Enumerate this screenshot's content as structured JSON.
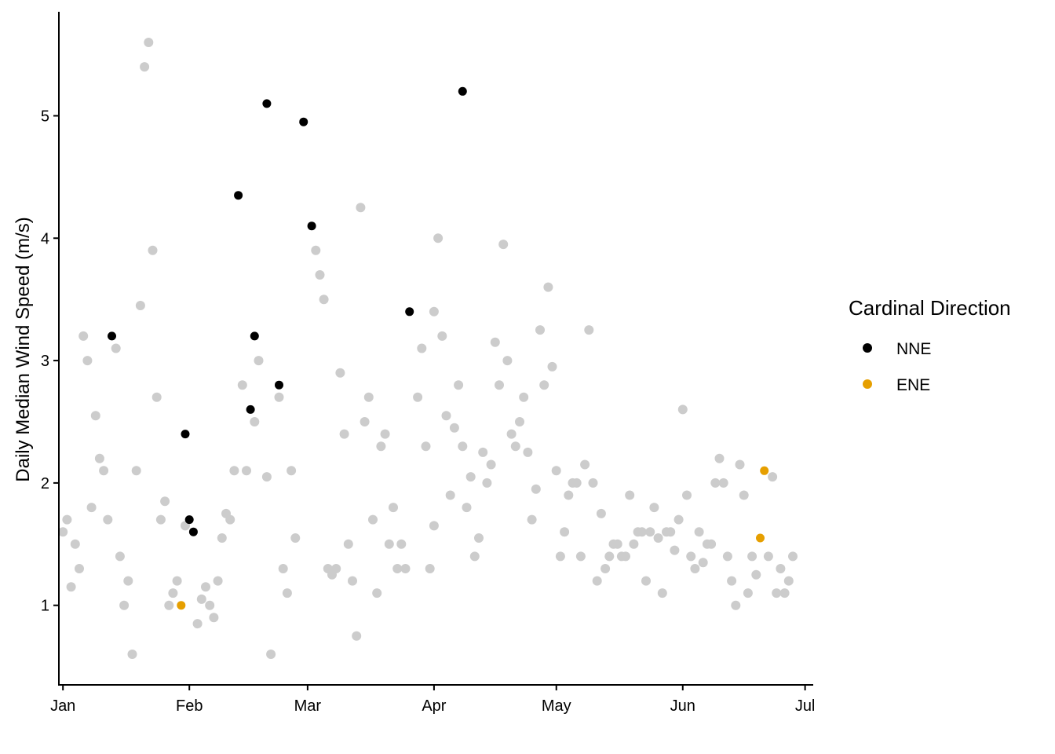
{
  "chart_data": {
    "type": "scatter",
    "title": "",
    "xlabel": "",
    "ylabel": "Daily Median Wind Speed (m/s)",
    "x_ticks": [
      "Jan",
      "Feb",
      "Mar",
      "Apr",
      "May",
      "Jun",
      "Jul"
    ],
    "x_tick_dates": [
      "2020-01-01",
      "2020-02-01",
      "2020-03-01",
      "2020-04-01",
      "2020-05-01",
      "2020-06-01",
      "2020-07-01"
    ],
    "xlim": [
      "2019-12-31",
      "2020-07-03"
    ],
    "y_ticks": [
      "1",
      "2",
      "3",
      "4",
      "5"
    ],
    "ylim": [
      0.35,
      5.85
    ],
    "grid": false,
    "legend": {
      "title": "Cardinal Direction",
      "placement": "right",
      "entries": [
        {
          "label": "NNE",
          "color": "#000000"
        },
        {
          "label": "ENE",
          "color": "#E69F00"
        }
      ]
    },
    "colors": {
      "other": "#CCCCCC",
      "NNE": "#000000",
      "ENE": "#E69F00"
    },
    "series": [
      {
        "group": "other",
        "points": [
          [
            "2020-01-01",
            1.6
          ],
          [
            "2020-01-02",
            1.7
          ],
          [
            "2020-01-03",
            1.15
          ],
          [
            "2020-01-04",
            1.5
          ],
          [
            "2020-01-05",
            1.3
          ],
          [
            "2020-01-06",
            3.2
          ],
          [
            "2020-01-07",
            3.0
          ],
          [
            "2020-01-08",
            1.8
          ],
          [
            "2020-01-09",
            2.55
          ],
          [
            "2020-01-10",
            2.2
          ],
          [
            "2020-01-11",
            2.1
          ],
          [
            "2020-01-12",
            1.7
          ],
          [
            "2020-01-14",
            3.1
          ],
          [
            "2020-01-15",
            1.4
          ],
          [
            "2020-01-16",
            1.0
          ],
          [
            "2020-01-17",
            1.2
          ],
          [
            "2020-01-18",
            0.6
          ],
          [
            "2020-01-19",
            2.1
          ],
          [
            "2020-01-20",
            3.45
          ],
          [
            "2020-01-21",
            5.4
          ],
          [
            "2020-01-22",
            5.6
          ],
          [
            "2020-01-23",
            3.9
          ],
          [
            "2020-01-24",
            2.7
          ],
          [
            "2020-01-25",
            1.7
          ],
          [
            "2020-01-26",
            1.85
          ],
          [
            "2020-01-27",
            1.0
          ],
          [
            "2020-01-28",
            1.1
          ],
          [
            "2020-01-29",
            1.2
          ],
          [
            "2020-01-31",
            1.65
          ],
          [
            "2020-02-03",
            0.85
          ],
          [
            "2020-02-04",
            1.05
          ],
          [
            "2020-02-05",
            1.15
          ],
          [
            "2020-02-06",
            1.0
          ],
          [
            "2020-02-07",
            0.9
          ],
          [
            "2020-02-08",
            1.2
          ],
          [
            "2020-02-09",
            1.55
          ],
          [
            "2020-02-10",
            1.75
          ],
          [
            "2020-02-11",
            1.7
          ],
          [
            "2020-02-12",
            2.1
          ],
          [
            "2020-02-14",
            2.8
          ],
          [
            "2020-02-15",
            2.1
          ],
          [
            "2020-02-17",
            2.5
          ],
          [
            "2020-02-18",
            3.0
          ],
          [
            "2020-02-20",
            2.05
          ],
          [
            "2020-02-21",
            0.6
          ],
          [
            "2020-02-23",
            2.7
          ],
          [
            "2020-02-24",
            1.3
          ],
          [
            "2020-02-25",
            1.1
          ],
          [
            "2020-02-26",
            2.1
          ],
          [
            "2020-02-27",
            1.55
          ],
          [
            "2020-03-03",
            3.9
          ],
          [
            "2020-03-04",
            3.7
          ],
          [
            "2020-03-05",
            3.5
          ],
          [
            "2020-03-06",
            1.3
          ],
          [
            "2020-03-07",
            1.25
          ],
          [
            "2020-03-08",
            1.3
          ],
          [
            "2020-03-09",
            2.9
          ],
          [
            "2020-03-10",
            2.4
          ],
          [
            "2020-03-11",
            1.5
          ],
          [
            "2020-03-12",
            1.2
          ],
          [
            "2020-03-13",
            0.75
          ],
          [
            "2020-03-14",
            4.25
          ],
          [
            "2020-03-15",
            2.5
          ],
          [
            "2020-03-16",
            2.7
          ],
          [
            "2020-03-17",
            1.7
          ],
          [
            "2020-03-18",
            1.1
          ],
          [
            "2020-03-19",
            2.3
          ],
          [
            "2020-03-20",
            2.4
          ],
          [
            "2020-03-21",
            1.5
          ],
          [
            "2020-03-22",
            1.8
          ],
          [
            "2020-03-23",
            1.3
          ],
          [
            "2020-03-24",
            1.5
          ],
          [
            "2020-03-25",
            1.3
          ],
          [
            "2020-03-28",
            2.7
          ],
          [
            "2020-03-29",
            3.1
          ],
          [
            "2020-03-30",
            2.3
          ],
          [
            "2020-03-31",
            1.3
          ],
          [
            "2020-04-01",
            1.65
          ],
          [
            "2020-04-01",
            3.4
          ],
          [
            "2020-04-02",
            4.0
          ],
          [
            "2020-04-03",
            3.2
          ],
          [
            "2020-04-04",
            2.55
          ],
          [
            "2020-04-05",
            1.9
          ],
          [
            "2020-04-06",
            2.45
          ],
          [
            "2020-04-07",
            2.8
          ],
          [
            "2020-04-08",
            2.3
          ],
          [
            "2020-04-09",
            1.8
          ],
          [
            "2020-04-10",
            2.05
          ],
          [
            "2020-04-11",
            1.4
          ],
          [
            "2020-04-12",
            1.55
          ],
          [
            "2020-04-13",
            2.25
          ],
          [
            "2020-04-14",
            2.0
          ],
          [
            "2020-04-15",
            2.15
          ],
          [
            "2020-04-16",
            3.15
          ],
          [
            "2020-04-17",
            2.8
          ],
          [
            "2020-04-18",
            3.95
          ],
          [
            "2020-04-19",
            3.0
          ],
          [
            "2020-04-20",
            2.4
          ],
          [
            "2020-04-21",
            2.3
          ],
          [
            "2020-04-22",
            2.5
          ],
          [
            "2020-04-23",
            2.7
          ],
          [
            "2020-04-24",
            2.25
          ],
          [
            "2020-04-25",
            1.7
          ],
          [
            "2020-04-26",
            1.95
          ],
          [
            "2020-04-27",
            3.25
          ],
          [
            "2020-04-28",
            2.8
          ],
          [
            "2020-04-29",
            3.6
          ],
          [
            "2020-04-30",
            2.95
          ],
          [
            "2020-05-01",
            2.1
          ],
          [
            "2020-05-02",
            1.4
          ],
          [
            "2020-05-03",
            1.6
          ],
          [
            "2020-05-04",
            1.9
          ],
          [
            "2020-05-05",
            2.0
          ],
          [
            "2020-05-06",
            2.0
          ],
          [
            "2020-05-07",
            1.4
          ],
          [
            "2020-05-08",
            2.15
          ],
          [
            "2020-05-09",
            3.25
          ],
          [
            "2020-05-10",
            2.0
          ],
          [
            "2020-05-11",
            1.2
          ],
          [
            "2020-05-12",
            1.75
          ],
          [
            "2020-05-13",
            1.3
          ],
          [
            "2020-05-14",
            1.4
          ],
          [
            "2020-05-15",
            1.5
          ],
          [
            "2020-05-16",
            1.5
          ],
          [
            "2020-05-17",
            1.4
          ],
          [
            "2020-05-18",
            1.4
          ],
          [
            "2020-05-19",
            1.9
          ],
          [
            "2020-05-20",
            1.5
          ],
          [
            "2020-05-21",
            1.6
          ],
          [
            "2020-05-22",
            1.6
          ],
          [
            "2020-05-23",
            1.2
          ],
          [
            "2020-05-24",
            1.6
          ],
          [
            "2020-05-25",
            1.8
          ],
          [
            "2020-05-26",
            1.55
          ],
          [
            "2020-05-27",
            1.1
          ],
          [
            "2020-05-28",
            1.6
          ],
          [
            "2020-05-29",
            1.6
          ],
          [
            "2020-05-30",
            1.45
          ],
          [
            "2020-05-31",
            1.7
          ],
          [
            "2020-06-01",
            2.6
          ],
          [
            "2020-06-02",
            1.9
          ],
          [
            "2020-06-03",
            1.4
          ],
          [
            "2020-06-04",
            1.3
          ],
          [
            "2020-06-05",
            1.6
          ],
          [
            "2020-06-06",
            1.35
          ],
          [
            "2020-06-07",
            1.5
          ],
          [
            "2020-06-08",
            1.5
          ],
          [
            "2020-06-09",
            2.0
          ],
          [
            "2020-06-10",
            2.2
          ],
          [
            "2020-06-11",
            2.0
          ],
          [
            "2020-06-12",
            1.4
          ],
          [
            "2020-06-13",
            1.2
          ],
          [
            "2020-06-14",
            1.0
          ],
          [
            "2020-06-15",
            2.15
          ],
          [
            "2020-06-16",
            1.9
          ],
          [
            "2020-06-17",
            1.1
          ],
          [
            "2020-06-18",
            1.4
          ],
          [
            "2020-06-19",
            1.25
          ],
          [
            "2020-06-22",
            1.4
          ],
          [
            "2020-06-23",
            2.05
          ],
          [
            "2020-06-24",
            1.1
          ],
          [
            "2020-06-25",
            1.3
          ],
          [
            "2020-06-26",
            1.1
          ],
          [
            "2020-06-27",
            1.2
          ],
          [
            "2020-06-28",
            1.4
          ]
        ]
      },
      {
        "group": "NNE",
        "points": [
          [
            "2020-01-13",
            3.2
          ],
          [
            "2020-01-31",
            2.4
          ],
          [
            "2020-02-01",
            1.7
          ],
          [
            "2020-02-02",
            1.6
          ],
          [
            "2020-02-13",
            4.35
          ],
          [
            "2020-02-16",
            2.6
          ],
          [
            "2020-02-17",
            3.2
          ],
          [
            "2020-02-20",
            5.1
          ],
          [
            "2020-02-23",
            2.8
          ],
          [
            "2020-02-29",
            4.95
          ],
          [
            "2020-03-02",
            4.1
          ],
          [
            "2020-03-26",
            3.4
          ],
          [
            "2020-04-08",
            5.2
          ]
        ]
      },
      {
        "group": "ENE",
        "points": [
          [
            "2020-01-30",
            1.0
          ],
          [
            "2020-06-20",
            1.55
          ],
          [
            "2020-06-21",
            2.1
          ]
        ]
      }
    ]
  }
}
